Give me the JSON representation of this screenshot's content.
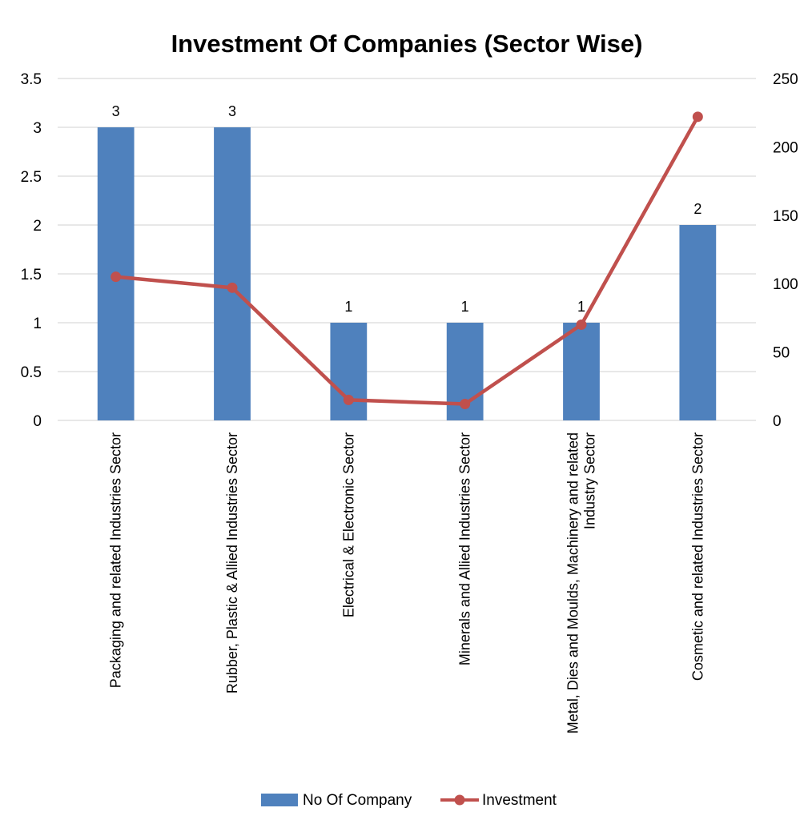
{
  "chart_data": {
    "type": "bar",
    "title": "Investment Of Companies (Sector Wise)",
    "categories": [
      "Packaging and related Industries Sector",
      "Rubber, Plastic & Allied Industries Sector",
      "Electrical & Electronic Sector",
      "Minerals and Allied Industries Sector",
      "Metal, Dies and Moulds, Machinery and related Industry Sector",
      "Cosmetic and related Industries Sector"
    ],
    "category_label_lines": [
      [
        "Packaging and related Industries Sector"
      ],
      [
        "Rubber, Plastic & Allied Industries Sector"
      ],
      [
        "Electrical & Electronic Sector"
      ],
      [
        "Minerals and Allied Industries Sector"
      ],
      [
        "Metal, Dies and Moulds, Machinery and related",
        "Industry Sector"
      ],
      [
        "Cosmetic and related Industries Sector"
      ]
    ],
    "series": [
      {
        "name": "No Of Company",
        "type": "bar",
        "axis": "left",
        "values": [
          3,
          3,
          1,
          1,
          1,
          2
        ],
        "color": "#4F81BD",
        "data_labels": true
      },
      {
        "name": "Investment",
        "type": "line",
        "axis": "right",
        "values": [
          105,
          97,
          15,
          12,
          70,
          222
        ],
        "color": "#C0504D",
        "data_labels": false
      }
    ],
    "y_left": {
      "min": 0,
      "max": 3.5,
      "ticks": [
        "0",
        "0.5",
        "1",
        "1.5",
        "2",
        "2.5",
        "3",
        "3.5"
      ]
    },
    "y_right": {
      "min": 0,
      "max": 250,
      "ticks": [
        "0",
        "50",
        "100",
        "150",
        "200",
        "250"
      ]
    },
    "grid": true,
    "legend": "bottom-center",
    "gridline_color": "#D9D9D9"
  }
}
